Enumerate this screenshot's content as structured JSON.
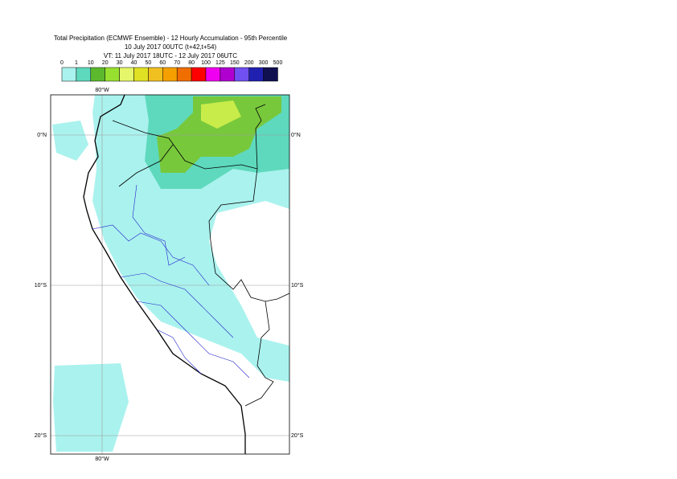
{
  "title": {
    "line1": "Total Precipitation (ECMWF Ensemble) - 12 Hourly Accumulation - 95th Percentile",
    "line2": "10 July 2017 00UTC (t+42,t+54)",
    "line3": "VT: 11 July 2017 18UTC - 12 July 2017 06UTC"
  },
  "legend": {
    "labels": [
      "0",
      "1",
      "10",
      "20",
      "30",
      "40",
      "50",
      "60",
      "70",
      "80",
      "100",
      "125",
      "150",
      "200",
      "300",
      "500"
    ]
  },
  "axes": {
    "lat_labels": [
      "0°N",
      "10°S",
      "20°S"
    ],
    "lon_labels": [
      "80°W"
    ]
  }
}
